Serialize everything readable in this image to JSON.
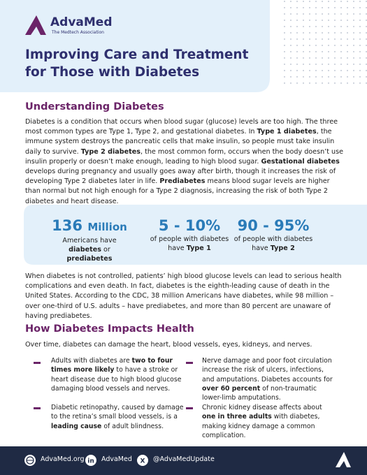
{
  "header": {
    "logo_name": "AdvaMed",
    "logo_tagline": "The Medtech Association",
    "title": "Improving Care and Treatment for Those with Diabetes"
  },
  "section1": {
    "heading": "Understanding Diabetes",
    "runs": [
      {
        "t": "Diabetes is a condition that occurs when blood sugar (glucose) levels are too high. The three most common types are Type 1, Type 2, and gestational diabetes.  In ",
        "b": false
      },
      {
        "t": "Type 1 diabetes",
        "b": true
      },
      {
        "t": ", the immune system destroys the pancreatic cells that make insulin, so people must take insulin daily to survive. ",
        "b": false
      },
      {
        "t": "Type 2 diabetes",
        "b": true
      },
      {
        "t": ", the most common form, occurs when the body doesn’t use insulin properly or doesn’t make enough, leading to high blood sugar. ",
        "b": false
      },
      {
        "t": "Gestational diabetes",
        "b": true
      },
      {
        "t": " develops during pregnancy and usually goes away after birth, though it increases the risk of developing Type 2 diabetes later in life. ",
        "b": false
      },
      {
        "t": "Prediabetes",
        "b": true
      },
      {
        "t": " means blood sugar levels are higher than normal but not high enough for a Type 2 diagnosis, increasing the risk of both Type 2 diabetes and heart disease.",
        "b": false
      }
    ]
  },
  "stats": [
    {
      "number": "136",
      "unit": "Million",
      "runs": [
        {
          "t": "Americans have",
          "b": false
        },
        {
          "t": "diabetes",
          "b": true
        },
        {
          "t": " or ",
          "b": false
        },
        {
          "t": "prediabetes",
          "b": true
        }
      ]
    },
    {
      "number": "5 - 10%",
      "runs": [
        {
          "t": "of people with diabetes have ",
          "b": false
        },
        {
          "t": "Type 1",
          "b": true
        }
      ]
    },
    {
      "number": "90 - 95%",
      "runs": [
        {
          "t": "of people with diabetes have ",
          "b": false
        },
        {
          "t": "Type 2",
          "b": true
        }
      ]
    }
  ],
  "paragraph2": "When diabetes is not controlled, patients’ high blood glucose levels can lead to serious health complications and even death. In fact, diabetes is the eighth-leading cause of death in the United States. According to the CDC, 38 million Americans have diabetes, while 98 million – over one-third of U.S. adults – have prediabetes, and more than 80 percent are unaware of having prediabetes.",
  "section2": {
    "heading": "How Diabetes Impacts Health",
    "intro": "Over time, diabetes can damage the heart, blood vessels, eyes, kidneys, and nerves.",
    "bullets": [
      [
        {
          "t": "Adults with diabetes are ",
          "b": false
        },
        {
          "t": "two to four times more likely",
          "b": true
        },
        {
          "t": " to have a stroke or heart disease due to high blood glucose damaging blood vessels and nerves.",
          "b": false
        }
      ],
      [
        {
          "t": "Nerve damage and poor foot circulation increase the risk of ulcers, infections, and amputations. Diabetes accounts for ",
          "b": false
        },
        {
          "t": "over 60 percent",
          "b": true
        },
        {
          "t": " of non-traumatic lower-limb amputations.",
          "b": false
        }
      ],
      [
        {
          "t": "Diabetic retinopathy, caused by damage to the retina’s small blood vessels, is a ",
          "b": false
        },
        {
          "t": "leading cause",
          "b": true
        },
        {
          "t": " of adult blindness.",
          "b": false
        }
      ],
      [
        {
          "t": "Chronic kidney disease affects about ",
          "b": false
        },
        {
          "t": "one in three adults",
          "b": true
        },
        {
          "t": " with diabetes, making kidney damage a common complication.",
          "b": false
        }
      ]
    ]
  },
  "footer": {
    "website": "AdvaMed.org",
    "linkedin": "AdvaMed",
    "x": "@AdvaMedUpdate"
  }
}
